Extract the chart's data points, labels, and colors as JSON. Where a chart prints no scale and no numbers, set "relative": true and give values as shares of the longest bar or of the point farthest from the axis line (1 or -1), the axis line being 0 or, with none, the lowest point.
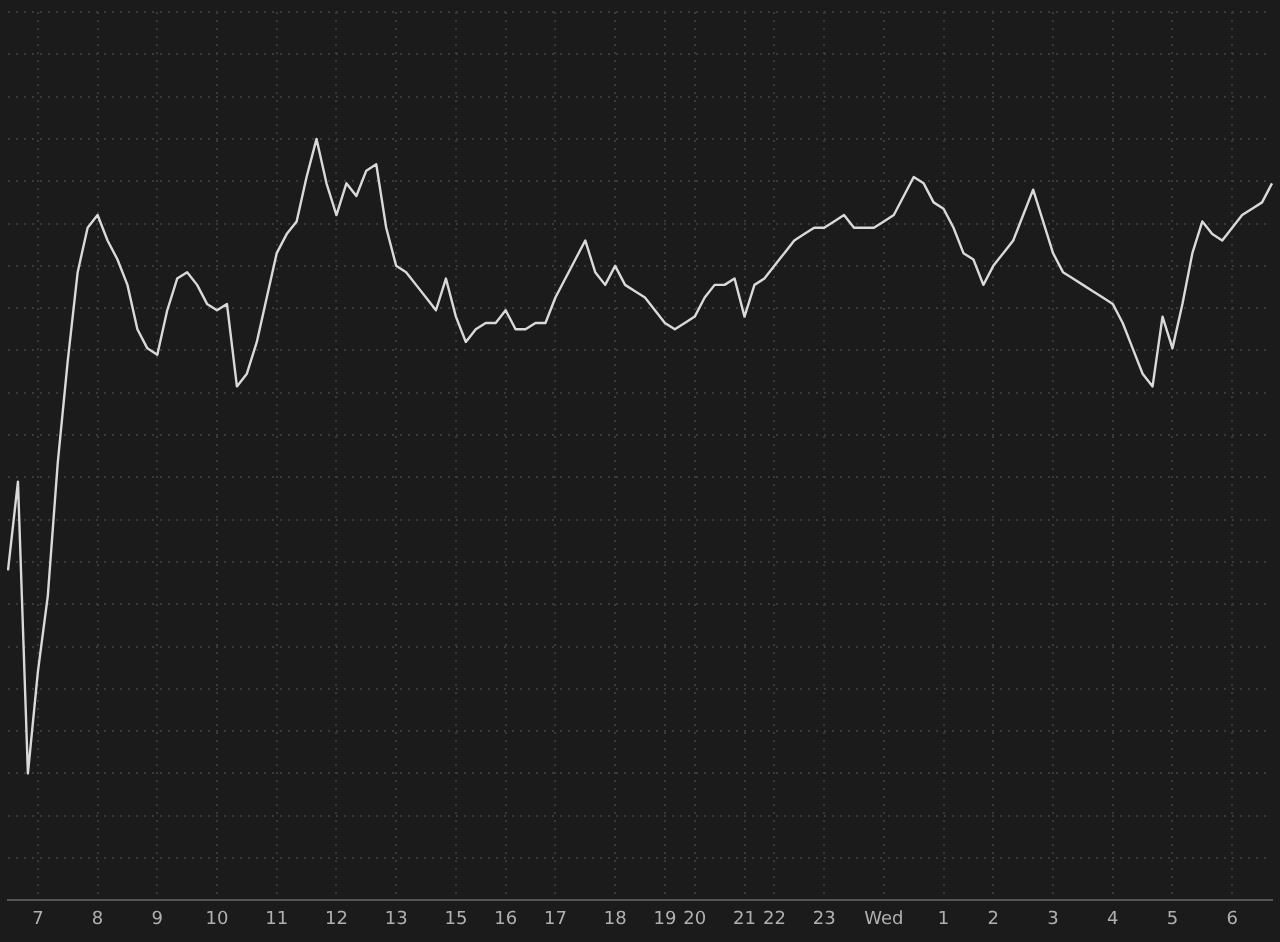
{
  "chart_data": {
    "type": "line",
    "relative": true,
    "grid": true,
    "legend": false,
    "marker": "none",
    "line_style": "solid",
    "categories": [
      null,
      null,
      null,
      "7",
      null,
      null,
      null,
      null,
      null,
      "8",
      null,
      null,
      null,
      null,
      null,
      "9",
      null,
      null,
      null,
      null,
      null,
      "10",
      null,
      null,
      null,
      null,
      null,
      "11",
      null,
      null,
      null,
      null,
      null,
      "12",
      null,
      null,
      null,
      null,
      null,
      "13",
      null,
      null,
      null,
      null,
      null,
      "15",
      null,
      null,
      null,
      null,
      "16",
      null,
      null,
      null,
      null,
      "17",
      null,
      null,
      null,
      null,
      null,
      "18",
      null,
      null,
      null,
      null,
      "19",
      null,
      null,
      "20",
      null,
      null,
      null,
      null,
      "21",
      null,
      null,
      "22",
      null,
      null,
      null,
      null,
      "23",
      null,
      null,
      null,
      null,
      null,
      "Wed",
      null,
      null,
      null,
      null,
      null,
      "1",
      null,
      null,
      null,
      null,
      "2",
      null,
      null,
      null,
      null,
      null,
      "3",
      null,
      null,
      null,
      null,
      null,
      "4",
      null,
      null,
      null,
      null,
      null,
      "5",
      null,
      null,
      null,
      null,
      null,
      "6",
      null,
      null,
      null,
      null
    ],
    "series": [
      {
        "color": "#d9d9d9",
        "values": [
          0.32,
          0.46,
          0,
          0.16,
          0.28,
          0.49,
          0.65,
          0.79,
          0.86,
          0.88,
          0.84,
          0.81,
          0.77,
          0.7,
          0.67,
          0.66,
          0.73,
          0.78,
          0.79,
          0.77,
          0.74,
          0.73,
          0.74,
          0.61,
          0.63,
          0.68,
          0.75,
          0.82,
          0.85,
          0.87,
          0.94,
          1,
          0.93,
          0.88,
          0.93,
          0.91,
          0.95,
          0.96,
          0.86,
          0.8,
          0.79,
          0.77,
          0.75,
          0.73,
          0.78,
          0.72,
          0.68,
          0.7,
          0.71,
          0.71,
          0.73,
          0.7,
          0.7,
          0.71,
          0.71,
          0.75,
          0.78,
          0.81,
          0.84,
          0.79,
          0.77,
          0.8,
          0.77,
          0.76,
          0.75,
          0.73,
          0.71,
          0.7,
          0.71,
          0.72,
          0.75,
          0.77,
          0.77,
          0.78,
          0.72,
          0.77,
          0.78,
          0.8,
          0.82,
          0.84,
          0.85,
          0.86,
          0.86,
          0.87,
          0.88,
          0.86,
          0.86,
          0.86,
          0.87,
          0.88,
          0.91,
          0.94,
          0.93,
          0.9,
          0.89,
          0.86,
          0.82,
          0.81,
          0.77,
          0.8,
          0.82,
          0.84,
          0.88,
          0.92,
          0.87,
          0.82,
          0.79,
          0.78,
          0.77,
          0.76,
          0.75,
          0.74,
          0.71,
          0.67,
          0.63,
          0.61,
          0.72,
          0.67,
          0.74,
          0.82,
          0.87,
          0.85,
          0.84,
          0.86,
          0.88,
          0.89,
          0.9,
          0.93
        ]
      }
    ]
  }
}
